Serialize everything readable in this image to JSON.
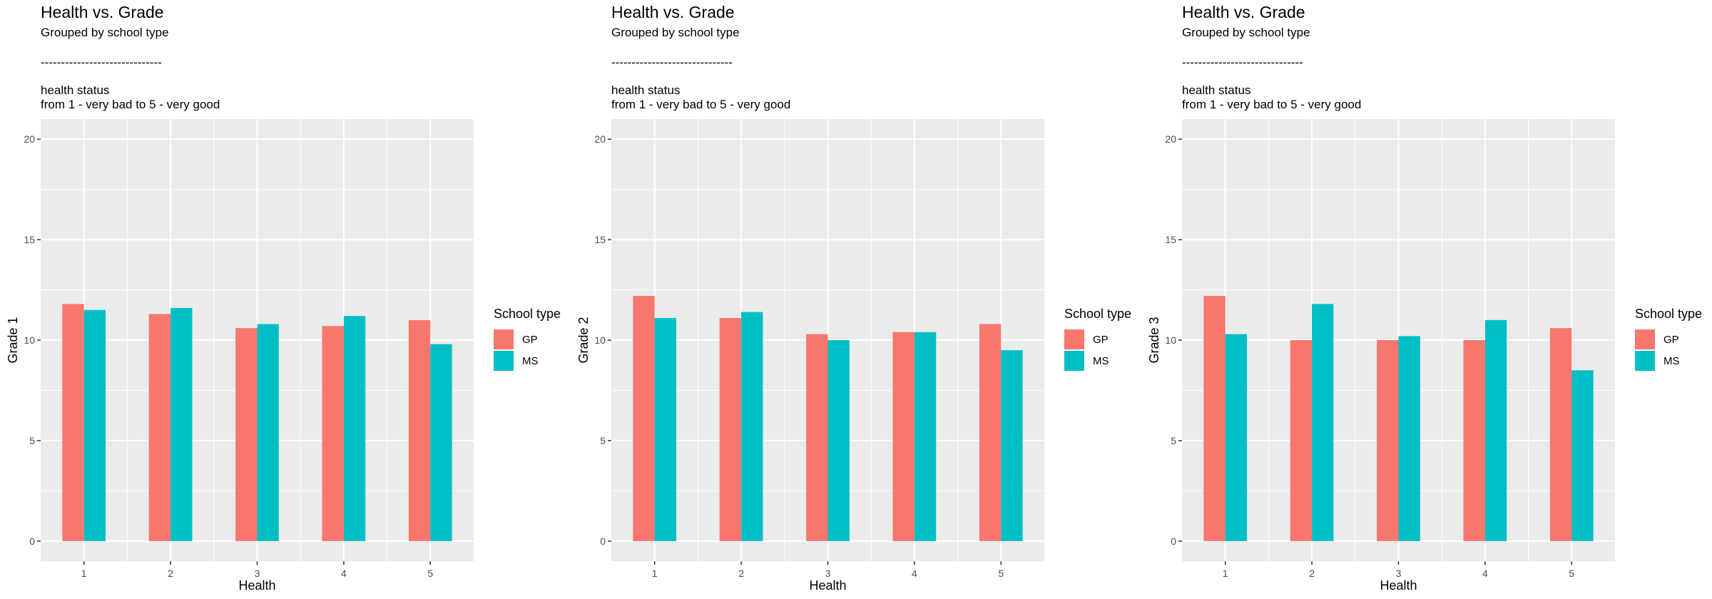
{
  "colors": {
    "GP": "#F8766D",
    "MS": "#00BFC4",
    "panel_bg": "#EBEBEB",
    "grid": "#FFFFFF"
  },
  "charts": [
    {
      "title": "Health vs. Grade",
      "subtitle": "Grouped by school type",
      "separator": "------------------------------",
      "caption_line1": "health status",
      "caption_line2": "from 1 - very bad to 5 - very good",
      "legend_title": "School type"
    },
    {
      "title": "Health vs. Grade",
      "subtitle": "Grouped by school type",
      "separator": "------------------------------",
      "caption_line1": "health status",
      "caption_line2": "from 1 - very bad to 5 - very good",
      "legend_title": "School type"
    },
    {
      "title": "Health vs. Grade",
      "subtitle": "Grouped by school type",
      "separator": "------------------------------",
      "caption_line1": "health status",
      "caption_line2": "from 1 - very bad to 5 - very good",
      "legend_title": "School type"
    }
  ],
  "chart_data": [
    {
      "type": "bar",
      "title": "Health vs. Grade",
      "subtitle": "Grouped by school type",
      "xlabel": "Health",
      "ylabel": "Grade 1",
      "categories": [
        "1",
        "2",
        "3",
        "4",
        "5"
      ],
      "series": [
        {
          "name": "GP",
          "values": [
            11.8,
            11.3,
            10.6,
            10.7,
            11.0
          ]
        },
        {
          "name": "MS",
          "values": [
            11.5,
            11.6,
            10.8,
            11.2,
            9.8
          ]
        }
      ],
      "ylim": [
        -1,
        21
      ],
      "yticks": [
        0,
        5,
        10,
        15,
        20
      ],
      "legend_title": "School type",
      "legend_position": "right",
      "grid": true
    },
    {
      "type": "bar",
      "title": "Health vs. Grade",
      "subtitle": "Grouped by school type",
      "xlabel": "Health",
      "ylabel": "Grade 2",
      "categories": [
        "1",
        "2",
        "3",
        "4",
        "5"
      ],
      "series": [
        {
          "name": "GP",
          "values": [
            12.2,
            11.1,
            10.3,
            10.4,
            10.8
          ]
        },
        {
          "name": "MS",
          "values": [
            11.1,
            11.4,
            10.0,
            10.4,
            9.5
          ]
        }
      ],
      "ylim": [
        -1,
        21
      ],
      "yticks": [
        0,
        5,
        10,
        15,
        20
      ],
      "legend_title": "School type",
      "legend_position": "right",
      "grid": true
    },
    {
      "type": "bar",
      "title": "Health vs. Grade",
      "subtitle": "Grouped by school type",
      "xlabel": "Health",
      "ylabel": "Grade 3",
      "categories": [
        "1",
        "2",
        "3",
        "4",
        "5"
      ],
      "series": [
        {
          "name": "GP",
          "values": [
            12.2,
            10.0,
            10.0,
            10.0,
            10.6
          ]
        },
        {
          "name": "MS",
          "values": [
            10.3,
            11.8,
            10.2,
            11.0,
            8.5
          ]
        }
      ],
      "ylim": [
        -1,
        21
      ],
      "yticks": [
        0,
        5,
        10,
        15,
        20
      ],
      "legend_title": "School type",
      "legend_position": "right",
      "grid": true
    }
  ]
}
